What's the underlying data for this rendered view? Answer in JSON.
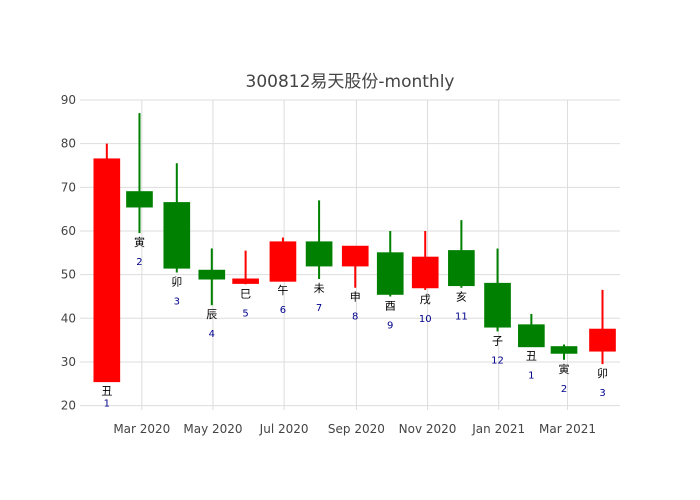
{
  "chart_data": {
    "type": "candlestick",
    "title": "300812易天股份-monthly",
    "xlabel": "",
    "ylabel": "",
    "ylim": [
      19,
      90
    ],
    "y_ticks": [
      20,
      30,
      40,
      50,
      60,
      70,
      80,
      90
    ],
    "x_ticks": [
      {
        "label": "Mar 2020",
        "date": "2020-03-01"
      },
      {
        "label": "May 2020",
        "date": "2020-05-01"
      },
      {
        "label": "Jul 2020",
        "date": "2020-07-01"
      },
      {
        "label": "Sep 2020",
        "date": "2020-09-01"
      },
      {
        "label": "Nov 2020",
        "date": "2020-11-01"
      },
      {
        "label": "Jan 2021",
        "date": "2021-01-01"
      },
      {
        "label": "Mar 2021",
        "date": "2021-03-01"
      }
    ],
    "x_range": [
      "2020-01-08",
      "2021-04-15"
    ],
    "grid": true,
    "colors": {
      "increasing": "#ff0000",
      "decreasing": "#008000",
      "annotation_number": "#00008b",
      "grid": "#dddddd"
    },
    "candles": [
      {
        "date": "2020-01-31",
        "open": 25.5,
        "high": 80.0,
        "low": 25.5,
        "close": 76.5,
        "branch": "丑",
        "num": "1"
      },
      {
        "date": "2020-02-28",
        "open": 69.0,
        "high": 87.0,
        "low": 59.5,
        "close": 65.5,
        "branch": "寅",
        "num": "2"
      },
      {
        "date": "2020-03-31",
        "open": 66.5,
        "high": 75.5,
        "low": 50.5,
        "close": 51.5,
        "branch": "卯",
        "num": "3"
      },
      {
        "date": "2020-04-30",
        "open": 51.0,
        "high": 56.0,
        "low": 43.0,
        "close": 49.0,
        "branch": "辰",
        "num": "4"
      },
      {
        "date": "2020-05-29",
        "open": 48.0,
        "high": 55.5,
        "low": 47.8,
        "close": 49.0,
        "branch": "巳",
        "num": "5"
      },
      {
        "date": "2020-06-30",
        "open": 48.5,
        "high": 58.5,
        "low": 48.5,
        "close": 57.5,
        "branch": "午",
        "num": "6"
      },
      {
        "date": "2020-07-31",
        "open": 57.5,
        "high": 67.0,
        "low": 49.0,
        "close": 52.0,
        "branch": "未",
        "num": "7"
      },
      {
        "date": "2020-08-31",
        "open": 52.0,
        "high": 56.5,
        "low": 47.0,
        "close": 56.5,
        "branch": "申",
        "num": "8"
      },
      {
        "date": "2020-09-30",
        "open": 55.0,
        "high": 60.0,
        "low": 45.0,
        "close": 45.5,
        "branch": "酉",
        "num": "9"
      },
      {
        "date": "2020-10-30",
        "open": 47.0,
        "high": 60.0,
        "low": 46.5,
        "close": 54.0,
        "branch": "戌",
        "num": "10"
      },
      {
        "date": "2020-11-30",
        "open": 55.5,
        "high": 62.5,
        "low": 47.0,
        "close": 47.5,
        "branch": "亥",
        "num": "11"
      },
      {
        "date": "2020-12-31",
        "open": 48.0,
        "high": 56.0,
        "low": 37.0,
        "close": 38.0,
        "branch": "子",
        "num": "12"
      },
      {
        "date": "2021-01-29",
        "open": 38.5,
        "high": 41.0,
        "low": 33.5,
        "close": 33.5,
        "branch": "丑",
        "num": "1"
      },
      {
        "date": "2021-02-26",
        "open": 33.5,
        "high": 34.0,
        "low": 30.5,
        "close": 32.0,
        "branch": "寅",
        "num": "2"
      },
      {
        "date": "2021-03-31",
        "open": 32.5,
        "high": 46.5,
        "low": 29.5,
        "close": 37.5,
        "branch": "卯",
        "num": "3"
      }
    ]
  }
}
